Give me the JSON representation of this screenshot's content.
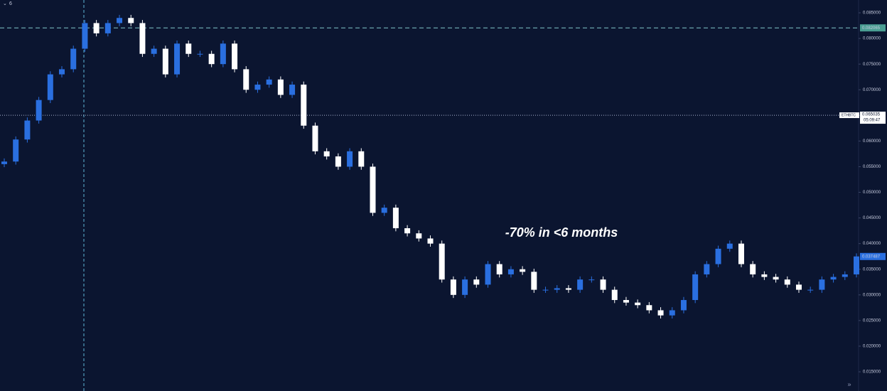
{
  "chart_data": {
    "type": "candlestick",
    "indicator": "6",
    "annotation": "-70% in <6 months",
    "symbol": "ETHBTC",
    "countdown": "05:09:47",
    "up_color": "#2a6fe0",
    "down_color": "#ffffff",
    "high_line": 0.082065,
    "crosshair_price": 0.065035,
    "last_price": 0.037487,
    "ylim": [
      0.01126,
      0.0875
    ],
    "yticks": [
      {
        "value": 0.085,
        "label": "0.085000"
      },
      {
        "value": 0.08,
        "label": "0.080000"
      },
      {
        "value": 0.075,
        "label": "0.075000"
      },
      {
        "value": 0.07,
        "label": "0.070000"
      },
      {
        "value": 0.065,
        "label": "0.065000"
      },
      {
        "value": 0.06,
        "label": "0.060000"
      },
      {
        "value": 0.055,
        "label": "0.055000"
      },
      {
        "value": 0.05,
        "label": "0.050000"
      },
      {
        "value": 0.045,
        "label": "0.045000"
      },
      {
        "value": 0.04,
        "label": "0.040000"
      },
      {
        "value": 0.035,
        "label": "0.035000"
      },
      {
        "value": 0.03,
        "label": "0.030000"
      },
      {
        "value": 0.025,
        "label": "0.025000"
      },
      {
        "value": 0.02,
        "label": "0.020000"
      },
      {
        "value": 0.015,
        "label": "0.015000"
      }
    ],
    "open": [
      0.0555,
      0.056,
      0.0603,
      0.064,
      0.068,
      0.073,
      0.074,
      0.078,
      0.083,
      0.081,
      0.083,
      0.084,
      0.083,
      0.077,
      0.078,
      0.073,
      0.079,
      0.077,
      0.077,
      0.075,
      0.079,
      0.074,
      0.07,
      0.071,
      0.072,
      0.069,
      0.071,
      0.063,
      0.058,
      0.057,
      0.055,
      0.058,
      0.055,
      0.046,
      0.047,
      0.043,
      0.042,
      0.041,
      0.04,
      0.033,
      0.03,
      0.033,
      0.032,
      0.036,
      0.034,
      0.035,
      0.0345,
      0.031,
      0.031,
      0.0313,
      0.031,
      0.033,
      0.033,
      0.031,
      0.029,
      0.0285,
      0.028,
      0.027,
      0.026,
      0.027,
      0.029,
      0.034,
      0.036,
      0.039,
      0.04,
      0.036,
      0.034,
      0.0335,
      0.033,
      0.032,
      0.031,
      0.031,
      0.033,
      0.0335,
      0.034
    ],
    "high": [
      0.0566,
      0.0609,
      0.0646,
      0.0686,
      0.0736,
      0.0746,
      0.0786,
      0.0836,
      0.0836,
      0.0836,
      0.0846,
      0.0846,
      0.0836,
      0.0786,
      0.0786,
      0.0796,
      0.0796,
      0.0776,
      0.0776,
      0.0796,
      0.0796,
      0.0746,
      0.0716,
      0.0726,
      0.0726,
      0.0716,
      0.0716,
      0.0636,
      0.0586,
      0.0576,
      0.0586,
      0.0586,
      0.0556,
      0.0476,
      0.0476,
      0.0436,
      0.0426,
      0.0416,
      0.0406,
      0.0336,
      0.0336,
      0.0336,
      0.0366,
      0.0366,
      0.0356,
      0.0356,
      0.0351,
      0.0316,
      0.0319,
      0.0319,
      0.0336,
      0.0336,
      0.0336,
      0.0316,
      0.0296,
      0.0291,
      0.0286,
      0.0276,
      0.0276,
      0.0296,
      0.0346,
      0.0366,
      0.0396,
      0.0406,
      0.0406,
      0.0366,
      0.0346,
      0.0341,
      0.0336,
      0.0326,
      0.0316,
      0.0336,
      0.0341,
      0.0346,
      0.0381
    ],
    "low": [
      0.0549,
      0.0554,
      0.0597,
      0.0634,
      0.0674,
      0.0724,
      0.0734,
      0.0774,
      0.0804,
      0.0804,
      0.0824,
      0.0824,
      0.0764,
      0.0764,
      0.0724,
      0.0724,
      0.0764,
      0.0764,
      0.0744,
      0.0744,
      0.0734,
      0.0694,
      0.0694,
      0.0704,
      0.0684,
      0.0684,
      0.0624,
      0.0574,
      0.0564,
      0.0544,
      0.0544,
      0.0544,
      0.0454,
      0.0454,
      0.0424,
      0.0414,
      0.0404,
      0.0394,
      0.0324,
      0.0294,
      0.0294,
      0.0314,
      0.0314,
      0.0334,
      0.0334,
      0.0339,
      0.0304,
      0.0304,
      0.0304,
      0.0304,
      0.0304,
      0.0324,
      0.0304,
      0.0284,
      0.0279,
      0.0274,
      0.0264,
      0.0254,
      0.0254,
      0.0264,
      0.0284,
      0.0334,
      0.0354,
      0.0384,
      0.0354,
      0.0334,
      0.0329,
      0.0324,
      0.0314,
      0.0304,
      0.0304,
      0.0304,
      0.0324,
      0.0329,
      0.0334
    ],
    "close": [
      0.056,
      0.0603,
      0.064,
      0.068,
      0.073,
      0.074,
      0.078,
      0.083,
      0.081,
      0.083,
      0.084,
      0.083,
      0.077,
      0.078,
      0.073,
      0.079,
      0.077,
      0.077,
      0.075,
      0.079,
      0.074,
      0.07,
      0.071,
      0.072,
      0.069,
      0.071,
      0.063,
      0.058,
      0.057,
      0.055,
      0.058,
      0.055,
      0.046,
      0.047,
      0.043,
      0.042,
      0.041,
      0.04,
      0.033,
      0.03,
      0.033,
      0.032,
      0.036,
      0.034,
      0.035,
      0.0345,
      0.031,
      0.031,
      0.0313,
      0.031,
      0.033,
      0.033,
      0.031,
      0.029,
      0.0285,
      0.028,
      0.027,
      0.026,
      0.027,
      0.029,
      0.034,
      0.036,
      0.039,
      0.04,
      0.036,
      0.034,
      0.0335,
      0.033,
      0.032,
      0.031,
      0.031,
      0.033,
      0.0335,
      0.034,
      0.0375
    ]
  }
}
